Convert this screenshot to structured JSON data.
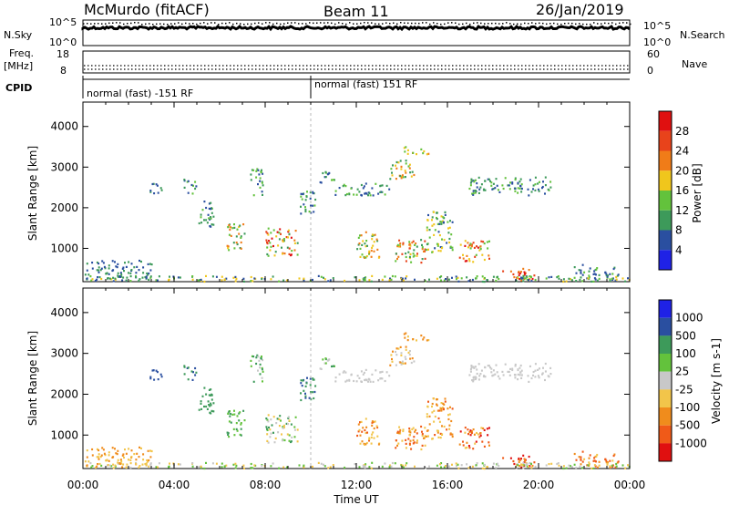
{
  "header": {
    "title": "McMurdo (fitACF)",
    "beam": "Beam 11",
    "date": "26/Jan/2019"
  },
  "colors": {
    "power": [
      "#1f22e6",
      "#2a4fa0",
      "#3d9a5a",
      "#63c23c",
      "#f0c61c",
      "#f07c18",
      "#e8431b",
      "#e01010"
    ],
    "velocity": [
      "#e01010",
      "#f05a18",
      "#f08c1c",
      "#f2c54a",
      "#c8c8c8",
      "#63c23c",
      "#3d9a5a",
      "#2a4fa0",
      "#1f22e6"
    ]
  },
  "chart_data": [
    {
      "type": "line",
      "name": "noise-panel",
      "left_label": "N.Sky",
      "right_label": "N.Search",
      "left_ticks": [
        "10^5",
        "10^0"
      ],
      "right_ticks": [
        "10^5",
        "10^0"
      ]
    },
    {
      "type": "line",
      "name": "frequency-panel",
      "left_label_1": "Freq.",
      "left_label_2": "[MHz]",
      "right_label": "Nave",
      "left_ticks": [
        "18",
        "8"
      ],
      "right_ticks": [
        "60",
        "0"
      ]
    },
    {
      "type": "table",
      "name": "cpid-panel",
      "label": "CPID",
      "segments": [
        {
          "text": "normal (fast) -151 RF",
          "start_hour": 0
        },
        {
          "text": "normal (fast) 151 RF",
          "start_hour": 10
        }
      ]
    },
    {
      "type": "heatmap",
      "name": "power-panel",
      "ylabel": "Slant Range [km]",
      "yticks": [
        "1000",
        "2000",
        "3000",
        "4000"
      ],
      "ylim": [
        180,
        4600
      ],
      "colorbar_label": "Power [dB]",
      "colorbar_ticks": [
        "4",
        "8",
        "12",
        "16",
        "20",
        "24",
        "28"
      ]
    },
    {
      "type": "heatmap",
      "name": "velocity-panel",
      "ylabel": "Slant Range [km]",
      "yticks": [
        "1000",
        "2000",
        "3000",
        "4000"
      ],
      "ylim": [
        180,
        4600
      ],
      "colorbar_label": "Velocity [m s-1]",
      "colorbar_ticks": [
        "1000",
        "500",
        "100",
        "25",
        "-25",
        "-100",
        "-500",
        "-1000"
      ]
    }
  ],
  "xaxis": {
    "label": "Time UT",
    "ticks": [
      "00:00",
      "04:00",
      "08:00",
      "12:00",
      "16:00",
      "20:00",
      "00:00"
    ]
  }
}
